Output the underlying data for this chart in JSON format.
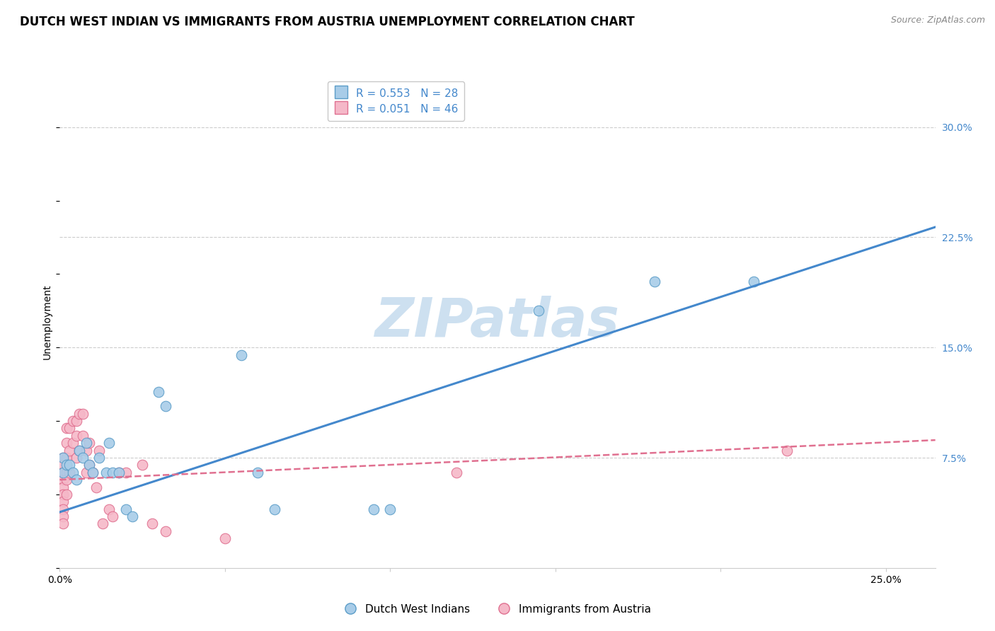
{
  "title": "DUTCH WEST INDIAN VS IMMIGRANTS FROM AUSTRIA UNEMPLOYMENT CORRELATION CHART",
  "source": "Source: ZipAtlas.com",
  "ylabel": "Unemployment",
  "y_ticks": [
    0.075,
    0.15,
    0.225,
    0.3
  ],
  "y_tick_labels": [
    "7.5%",
    "15.0%",
    "22.5%",
    "30.0%"
  ],
  "xlim": [
    0.0,
    0.265
  ],
  "ylim": [
    0.0,
    0.335
  ],
  "blue_R": "R = 0.553",
  "blue_N": "N = 28",
  "pink_R": "R = 0.051",
  "pink_N": "N = 46",
  "blue_color": "#a8cce8",
  "pink_color": "#f5b8c8",
  "blue_edge_color": "#5b9dc8",
  "pink_edge_color": "#e07090",
  "blue_line_color": "#4488cc",
  "pink_line_color": "#e07090",
  "watermark": "ZIPatlas",
  "watermark_color": "#cde0f0",
  "legend_label_blue": "Dutch West Indians",
  "legend_label_pink": "Immigrants from Austria",
  "blue_points_x": [
    0.001,
    0.001,
    0.002,
    0.003,
    0.004,
    0.005,
    0.006,
    0.007,
    0.008,
    0.009,
    0.01,
    0.012,
    0.014,
    0.015,
    0.016,
    0.018,
    0.02,
    0.022,
    0.03,
    0.032,
    0.055,
    0.06,
    0.065,
    0.095,
    0.1,
    0.145,
    0.18,
    0.21
  ],
  "blue_points_y": [
    0.065,
    0.075,
    0.07,
    0.07,
    0.065,
    0.06,
    0.08,
    0.075,
    0.085,
    0.07,
    0.065,
    0.075,
    0.065,
    0.085,
    0.065,
    0.065,
    0.04,
    0.035,
    0.12,
    0.11,
    0.145,
    0.065,
    0.04,
    0.04,
    0.04,
    0.175,
    0.195,
    0.195
  ],
  "pink_points_x": [
    0.001,
    0.001,
    0.001,
    0.001,
    0.001,
    0.001,
    0.001,
    0.001,
    0.001,
    0.001,
    0.002,
    0.002,
    0.002,
    0.002,
    0.002,
    0.002,
    0.003,
    0.003,
    0.003,
    0.004,
    0.004,
    0.005,
    0.005,
    0.005,
    0.006,
    0.006,
    0.007,
    0.007,
    0.008,
    0.008,
    0.009,
    0.009,
    0.01,
    0.011,
    0.012,
    0.013,
    0.015,
    0.016,
    0.018,
    0.02,
    0.025,
    0.028,
    0.032,
    0.05,
    0.12,
    0.22
  ],
  "pink_points_y": [
    0.075,
    0.07,
    0.065,
    0.06,
    0.055,
    0.05,
    0.045,
    0.04,
    0.035,
    0.03,
    0.095,
    0.085,
    0.075,
    0.065,
    0.06,
    0.05,
    0.095,
    0.08,
    0.065,
    0.1,
    0.085,
    0.1,
    0.09,
    0.075,
    0.105,
    0.08,
    0.105,
    0.09,
    0.08,
    0.065,
    0.085,
    0.07,
    0.065,
    0.055,
    0.08,
    0.03,
    0.04,
    0.035,
    0.065,
    0.065,
    0.07,
    0.03,
    0.025,
    0.02,
    0.065,
    0.08
  ],
  "blue_line_x0": 0.0,
  "blue_line_x1": 0.265,
  "blue_line_y0": 0.038,
  "blue_line_y1": 0.232,
  "pink_line_x0": 0.0,
  "pink_line_x1": 0.265,
  "pink_line_y0": 0.06,
  "pink_line_y1": 0.087,
  "grid_color": "#cccccc",
  "bg_color": "#ffffff",
  "title_fontsize": 12,
  "axis_label_fontsize": 10,
  "tick_fontsize": 10,
  "legend_fontsize": 11,
  "source_fontsize": 9,
  "watermark_fontsize": 55,
  "marker_size": 110,
  "marker_lw": 0.8
}
